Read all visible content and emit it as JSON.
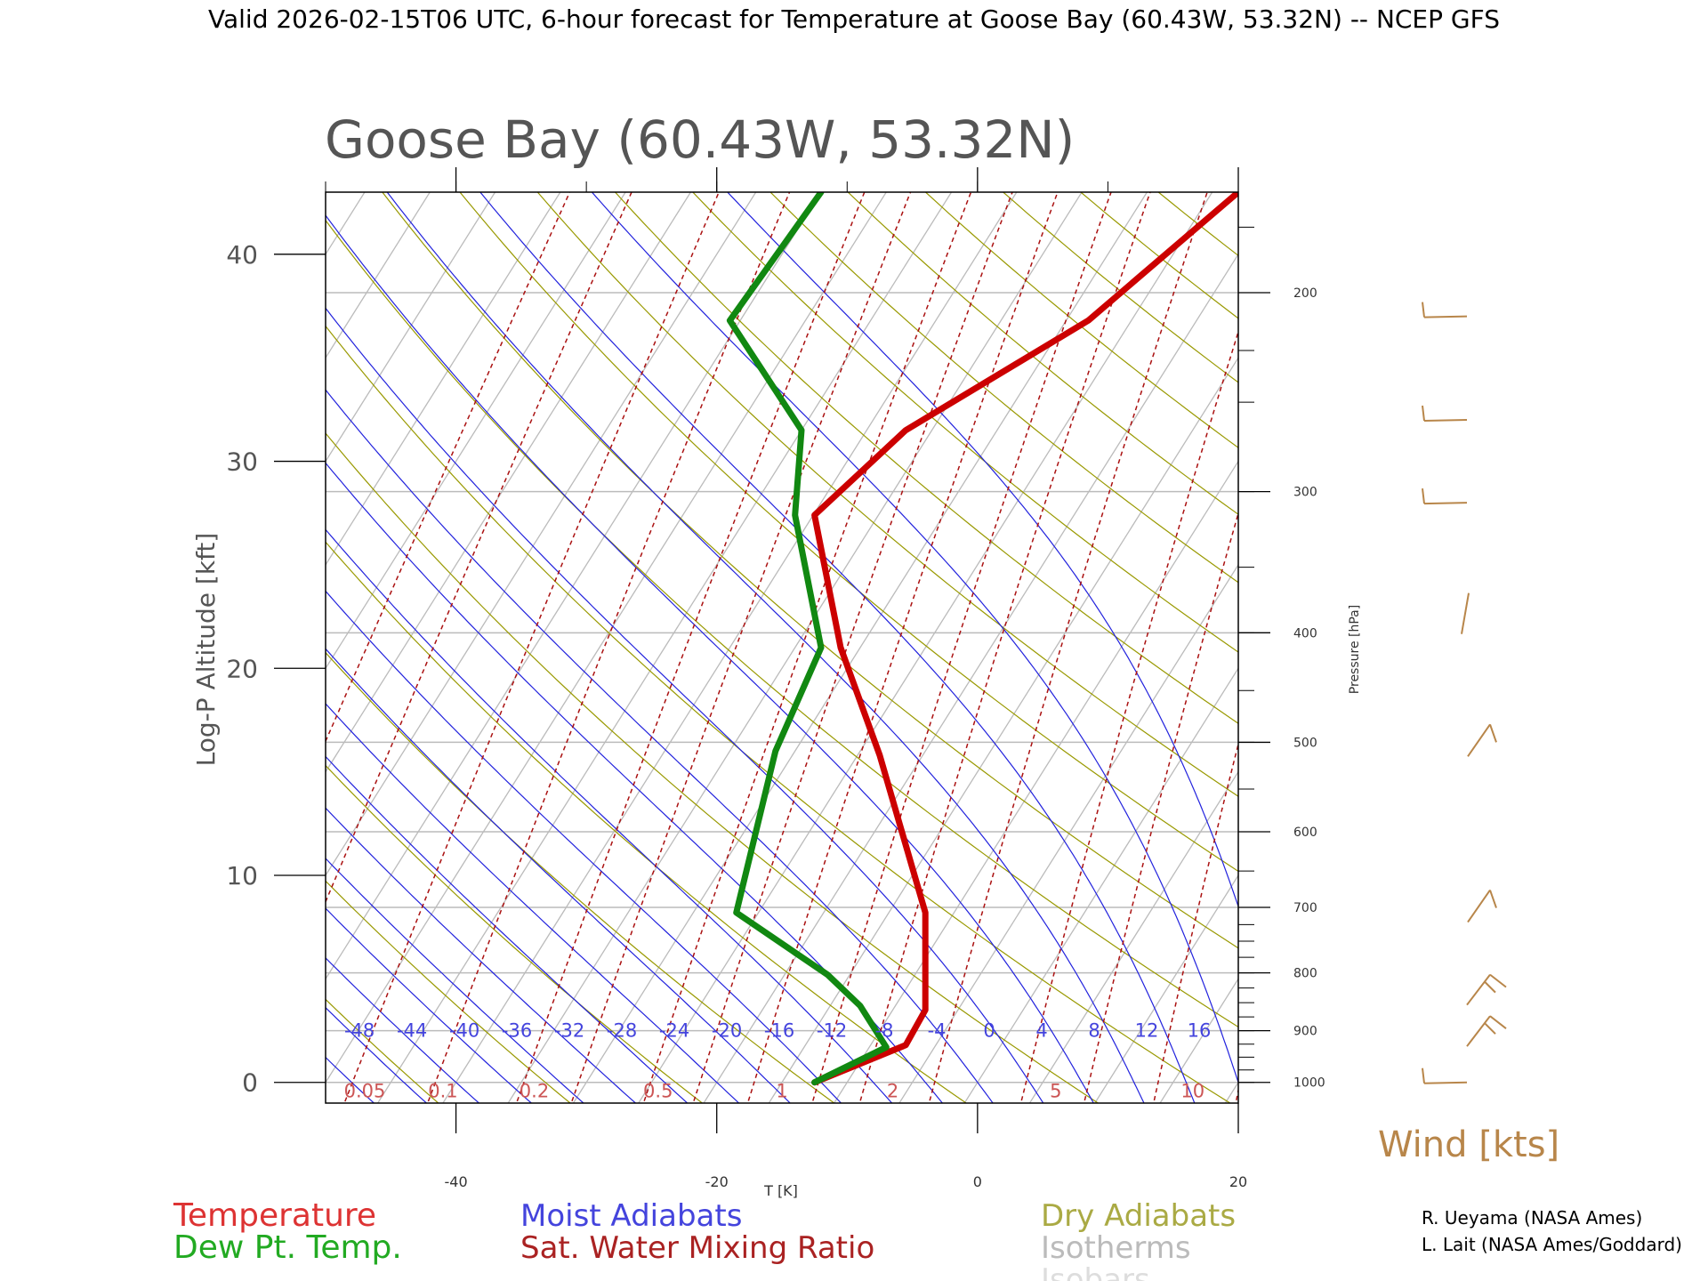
{
  "header": {
    "title": "Valid 2026-02-15T06 UTC, 6-hour forecast for Temperature at Goose Bay (60.43W, 53.32N) -- NCEP GFS"
  },
  "chart_data": {
    "type": "line",
    "title": "Goose Bay (60.43W, 53.32N)",
    "xlabel": "T [K]",
    "ylabel": "Log-P Altitude [kft]",
    "y2label": "Pressure [hPa]",
    "xlim": [
      -50,
      20
    ],
    "ylim": [
      -1,
      43
    ],
    "x_ticks": [
      -40,
      -20,
      0,
      20
    ],
    "y_ticks": [
      0,
      10,
      20,
      30,
      40
    ],
    "pressure_ticks": [
      1000,
      900,
      800,
      700,
      600,
      500,
      400,
      300,
      200
    ],
    "legend": {
      "temperature": "Temperature",
      "dewpoint": "Dew Pt. Temp.",
      "moist": "Moist Adiabats",
      "mixing": "Sat. Water Mixing Ratio",
      "dry": "Dry Adiabats",
      "isotherms": "Isotherms",
      "isobars": "Isobars"
    },
    "moist_labels": [
      "-48",
      "-44",
      "-40",
      "-36",
      "-32",
      "-28",
      "-24",
      "-20",
      "-16",
      "-12",
      "-8",
      "-4",
      "0",
      "4",
      "8",
      "12",
      "16"
    ],
    "mixing_labels": [
      "0.05",
      "0.1",
      "0.2",
      "0.5",
      "1",
      "2",
      "5",
      "10"
    ],
    "wind_label": "Wind [kts]",
    "series": [
      {
        "name": "Temperature",
        "color": "#cc0000",
        "x": [
          -12.5,
          -5.5,
          -4,
          -4,
          -4,
          -7.5,
          -10.5,
          -12.5,
          -5.5,
          8.5,
          20
        ],
        "y": [
          0,
          1.8,
          3.5,
          4.5,
          8.2,
          15.8,
          21.0,
          27.4,
          31.5,
          36.8,
          43
        ]
      },
      {
        "name": "Dew Pt. Temp.",
        "color": "#118811",
        "x": [
          -12.5,
          -7,
          -9,
          -11.5,
          -18.5,
          -15.5,
          -12,
          -14,
          -13.5,
          -19,
          -12
        ],
        "y": [
          0,
          1.7,
          3.7,
          5.2,
          8.2,
          16.0,
          21.0,
          27.4,
          31.5,
          36.8,
          43
        ]
      }
    ],
    "wind_barbs": [
      {
        "altitude_kft": 0,
        "speed_kts": 5
      },
      {
        "altitude_kft": 2,
        "speed_kts": 15
      },
      {
        "altitude_kft": 4,
        "speed_kts": 15
      },
      {
        "altitude_kft": 8,
        "speed_kts": 10
      },
      {
        "altitude_kft": 16,
        "speed_kts": 10
      },
      {
        "altitude_kft": 22,
        "speed_kts": 0
      },
      {
        "altitude_kft": 28,
        "speed_kts": 5
      },
      {
        "altitude_kft": 32,
        "speed_kts": 5
      },
      {
        "altitude_kft": 37,
        "speed_kts": 5
      }
    ]
  },
  "credits": {
    "line1": "R. Ueyama (NASA Ames)",
    "line2": "L. Lait (NASA Ames/Goddard)"
  },
  "colors": {
    "temperature": "#cc0000",
    "dewpoint": "#118811",
    "moist": "#2222dd",
    "mixing": "#aa1111",
    "dry": "#999900",
    "iso": "#bbbbbb",
    "wind": "#b8864a"
  }
}
